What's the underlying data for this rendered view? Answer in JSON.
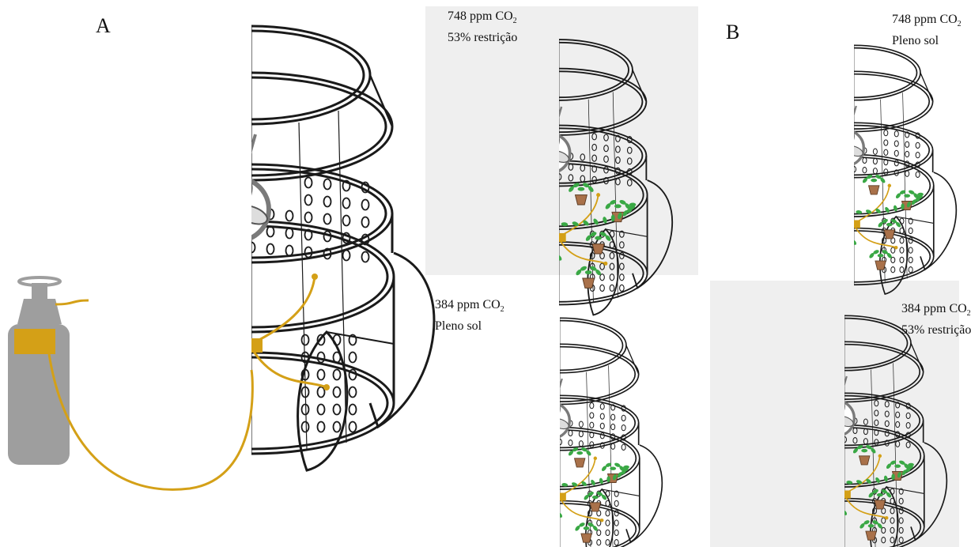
{
  "panel_labels": {
    "a": "A",
    "b": "B"
  },
  "captions": [
    {
      "line1_prefix": "748 ppm CO",
      "line1_sub": "2",
      "line2": "53% restrição"
    },
    {
      "line1_prefix": "748 ppm CO",
      "line1_sub": "2",
      "line2": "Pleno sol"
    },
    {
      "line1_prefix": "384 ppm CO",
      "line1_sub": "2",
      "line2": "Pleno sol"
    },
    {
      "line1_prefix": "384 ppm CO",
      "line1_sub": "2",
      "line2": "53% restrição"
    }
  ],
  "colors": {
    "frame": "#1a1a1a",
    "tube": "#d4a017",
    "valve": "#d4a017",
    "cylinder": "#9e9e9e",
    "fan": "#7a7a7a",
    "pot": "#a9714a",
    "leaf": "#3aa845",
    "shade_bg": "#efefef"
  },
  "icons": [
    "co2-cylinder-icon",
    "fan-icon",
    "manifold-valve-icon",
    "plant-pot-icon"
  ]
}
